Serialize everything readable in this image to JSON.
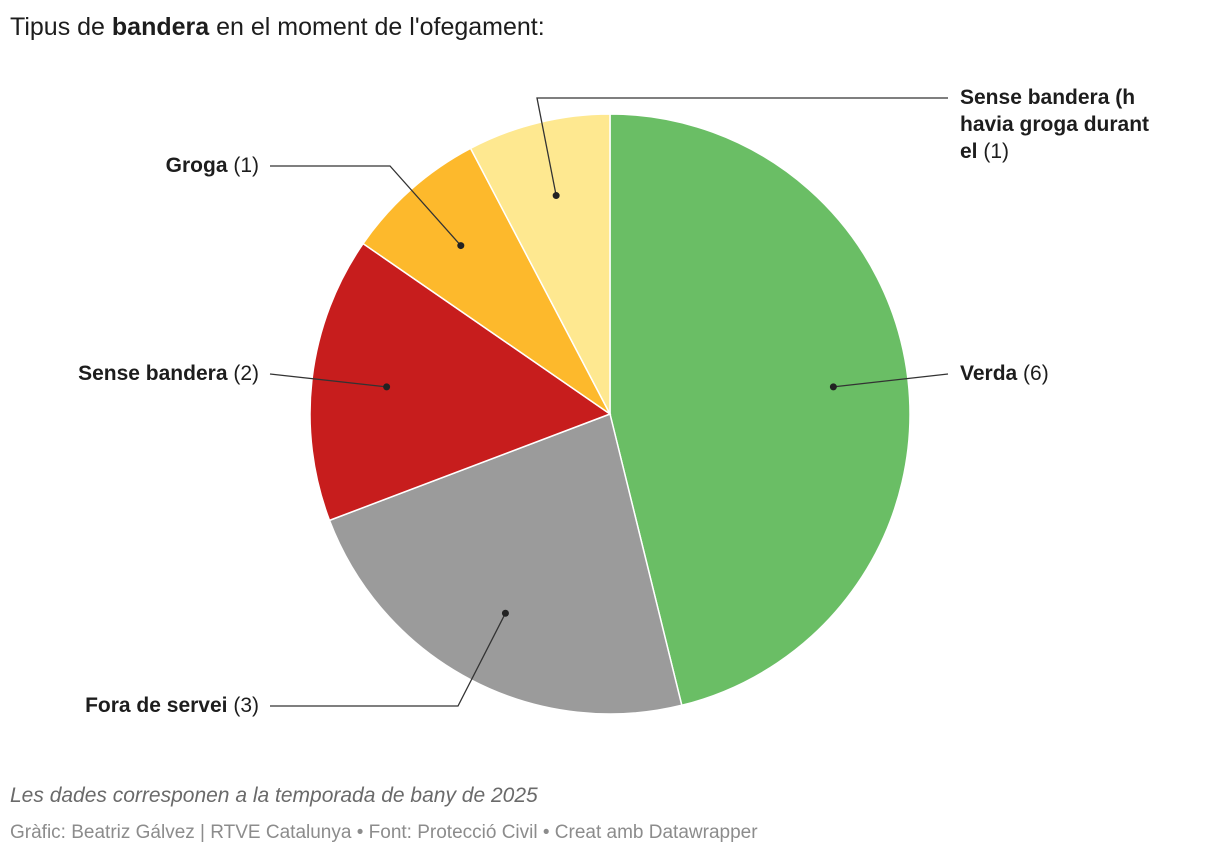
{
  "title": {
    "prefix": "Tipus de ",
    "bold": "bandera",
    "suffix": " en el moment de l'ofegament:"
  },
  "chart_data": {
    "type": "pie",
    "slices": [
      {
        "label": "Verda",
        "value": 6,
        "value_text": "(6)",
        "color": "#6abe65"
      },
      {
        "label": "Fora de servei",
        "value": 3,
        "value_text": "(3)",
        "color": "#9b9b9b"
      },
      {
        "label": "Sense bandera",
        "value": 2,
        "value_text": "(2)",
        "color": "#c71d1d"
      },
      {
        "label": "Groga",
        "value": 1,
        "value_text": "(1)",
        "color": "#fdb92c"
      },
      {
        "label": "Sense bandera (hi havia groga durant el dia)",
        "value": 1,
        "value_text": "(1)",
        "color": "#fee890"
      }
    ]
  },
  "notes": "Les dades corresponen a la temporada de bany de 2025",
  "byline": "Gràfic: Beatriz Gálvez | RTVE Catalunya • Font: Protecció Civil • Creat amb Datawrapper"
}
